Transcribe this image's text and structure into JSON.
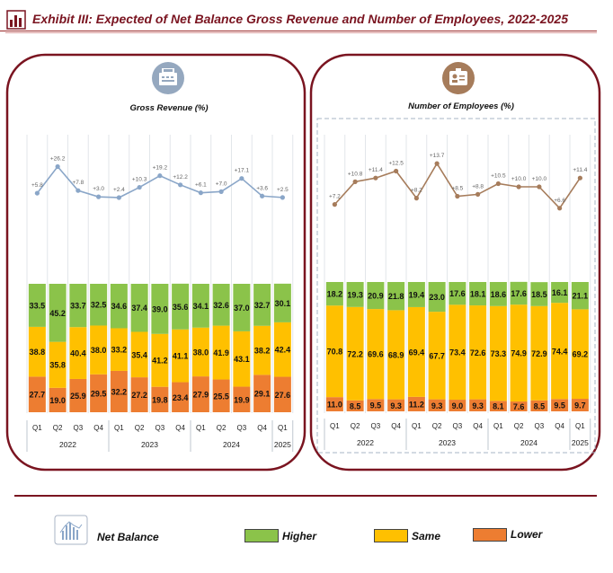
{
  "header": {
    "exhibit_label": "Exhibit III:",
    "title": "Expected of Net Balance Gross Revenue and Number of Employees, 2022-2025",
    "accent_color": "#7a1420"
  },
  "icons": {
    "header": "bar-chart-icon",
    "gross_revenue": "cash-register-icon",
    "employees": "id-badge-icon",
    "legend_net_balance": "line-chart-icon"
  },
  "legend": {
    "net_balance": "Net Balance",
    "higher": "Higher",
    "same": "Same",
    "lower": "Lower"
  },
  "colors": {
    "higher": "#8bc34a",
    "same": "#ffc000",
    "lower": "#ed7d31",
    "line_revenue": "#8aa6c8",
    "line_employees": "#a67c5b",
    "frame": "#7a1420"
  },
  "chart_data": [
    {
      "type": "bar",
      "title": "Gross Revenue (%)",
      "stacked": true,
      "categories": [
        "Q1",
        "Q2",
        "Q3",
        "Q4",
        "Q1",
        "Q2",
        "Q3",
        "Q4",
        "Q1",
        "Q2",
        "Q3",
        "Q4",
        "Q1"
      ],
      "years": [
        {
          "label": "2022",
          "span": 4
        },
        {
          "label": "2023",
          "span": 4
        },
        {
          "label": "2024",
          "span": 4
        },
        {
          "label": "2025",
          "span": 1
        }
      ],
      "series": [
        {
          "name": "Lower",
          "values": [
            27.7,
            19.0,
            25.9,
            29.5,
            32.2,
            27.2,
            19.8,
            23.4,
            27.9,
            25.5,
            19.9,
            29.1,
            27.6
          ]
        },
        {
          "name": "Same",
          "values": [
            38.8,
            35.8,
            40.4,
            38.0,
            33.2,
            35.4,
            41.2,
            41.1,
            38.0,
            41.9,
            43.1,
            38.2,
            42.4
          ]
        },
        {
          "name": "Higher",
          "values": [
            33.5,
            45.2,
            33.7,
            32.5,
            34.6,
            37.4,
            39.0,
            35.6,
            34.1,
            32.6,
            37.0,
            32.7,
            30.1
          ]
        }
      ],
      "net_balance": {
        "name": "Net Balance",
        "values": [
          5.8,
          26.2,
          7.8,
          3.0,
          2.4,
          10.3,
          19.2,
          12.2,
          6.1,
          7.0,
          17.1,
          3.6,
          2.5
        ],
        "labels": [
          "+5.8",
          "+26.2",
          "+7.8",
          "+3.0",
          "+2.4",
          "+10.3",
          "+19.2",
          "+12.2",
          "+6.1",
          "+7.0",
          "+17.1",
          "+3.6",
          "+2.5"
        ]
      },
      "ylim": [
        0,
        100
      ],
      "grid": true
    },
    {
      "type": "bar",
      "title": "Number of Employees (%)",
      "stacked": true,
      "categories": [
        "Q1",
        "Q2",
        "Q3",
        "Q4",
        "Q1",
        "Q2",
        "Q3",
        "Q4",
        "Q1",
        "Q2",
        "Q3",
        "Q4",
        "Q1"
      ],
      "years": [
        {
          "label": "2022",
          "span": 4
        },
        {
          "label": "2023",
          "span": 4
        },
        {
          "label": "2024",
          "span": 4
        },
        {
          "label": "2025",
          "span": 1
        }
      ],
      "series": [
        {
          "name": "Lower",
          "values": [
            11.0,
            8.5,
            9.5,
            9.3,
            11.2,
            9.3,
            9.0,
            9.3,
            8.1,
            7.6,
            8.5,
            9.5,
            9.7
          ]
        },
        {
          "name": "Same",
          "values": [
            70.8,
            72.2,
            69.6,
            68.9,
            69.4,
            67.7,
            73.4,
            72.6,
            73.3,
            74.9,
            72.9,
            74.4,
            69.2
          ]
        },
        {
          "name": "Higher",
          "values": [
            18.2,
            19.3,
            20.9,
            21.8,
            19.4,
            23.0,
            17.6,
            18.1,
            18.6,
            17.6,
            18.5,
            16.1,
            21.1
          ]
        }
      ],
      "net_balance": {
        "name": "Net Balance",
        "values": [
          7.2,
          10.8,
          11.4,
          12.5,
          8.2,
          13.7,
          8.5,
          8.8,
          10.5,
          10.0,
          10.0,
          6.6,
          11.4
        ],
        "labels": [
          "+7.2",
          "+10.8",
          "+11.4",
          "+12.5",
          "+8.2",
          "+13.7",
          "+8.5",
          "+8.8",
          "+10.5",
          "+10.0",
          "+10.0",
          "+6.6",
          "+11.4"
        ]
      },
      "ylim": [
        0,
        100
      ],
      "grid": true
    }
  ]
}
